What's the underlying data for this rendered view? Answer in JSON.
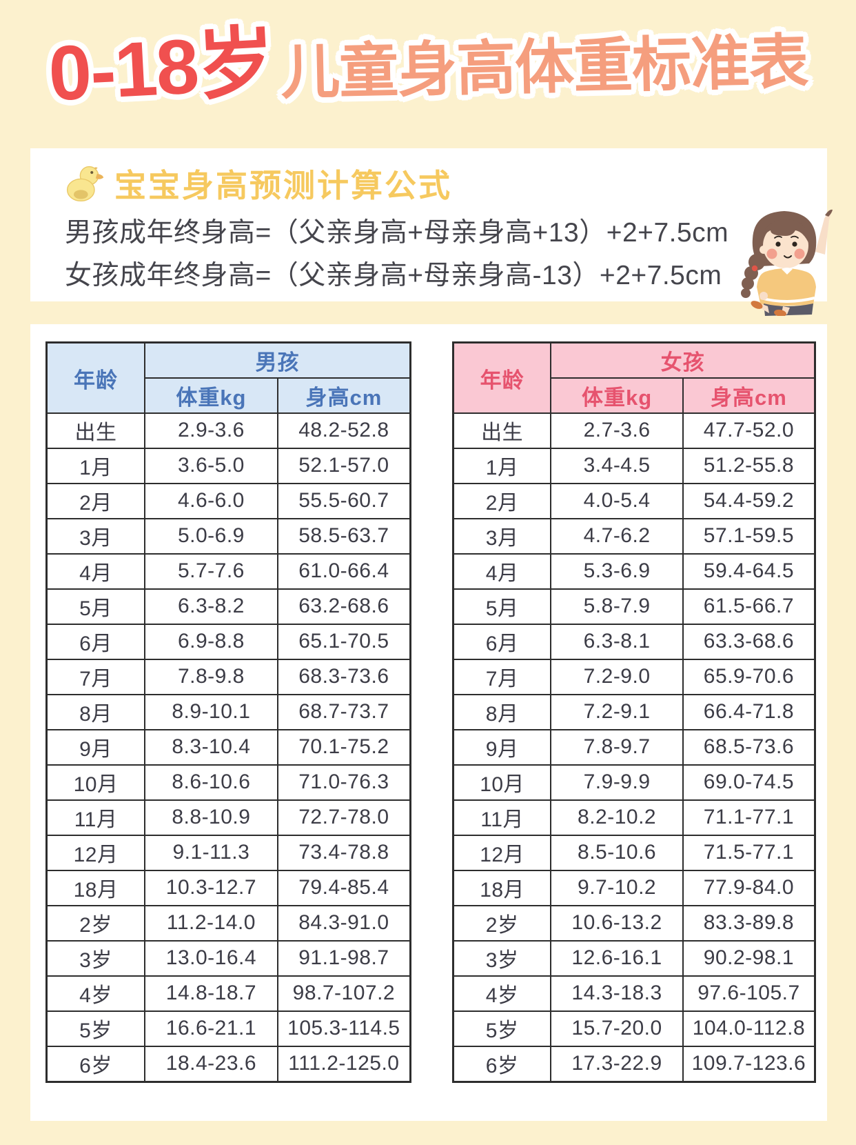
{
  "title": {
    "age_range": "0-18岁",
    "main": "儿童身高体重标准表"
  },
  "formula_card": {
    "heading": "宝宝身高预测计算公式",
    "lines": [
      "男孩成年终身高=（父亲身高+母亲身高+13）+2+7.5cm",
      "女孩成年终身高=（父亲身高+母亲身高-13）+2+7.5cm"
    ]
  },
  "tables": {
    "boys": {
      "age_header": "年龄",
      "group_header": "男孩",
      "weight_header": "体重kg",
      "height_header": "身高cm",
      "rows": [
        {
          "age": "出生",
          "weight": "2.9-3.6",
          "height": "48.2-52.8"
        },
        {
          "age": "1月",
          "weight": "3.6-5.0",
          "height": "52.1-57.0"
        },
        {
          "age": "2月",
          "weight": "4.6-6.0",
          "height": "55.5-60.7"
        },
        {
          "age": "3月",
          "weight": "5.0-6.9",
          "height": "58.5-63.7"
        },
        {
          "age": "4月",
          "weight": "5.7-7.6",
          "height": "61.0-66.4"
        },
        {
          "age": "5月",
          "weight": "6.3-8.2",
          "height": "63.2-68.6"
        },
        {
          "age": "6月",
          "weight": "6.9-8.8",
          "height": "65.1-70.5"
        },
        {
          "age": "7月",
          "weight": "7.8-9.8",
          "height": "68.3-73.6"
        },
        {
          "age": "8月",
          "weight": "8.9-10.1",
          "height": "68.7-73.7"
        },
        {
          "age": "9月",
          "weight": "8.3-10.4",
          "height": "70.1-75.2"
        },
        {
          "age": "10月",
          "weight": "8.6-10.6",
          "height": "71.0-76.3"
        },
        {
          "age": "11月",
          "weight": "8.8-10.9",
          "height": "72.7-78.0"
        },
        {
          "age": "12月",
          "weight": "9.1-11.3",
          "height": "73.4-78.8"
        },
        {
          "age": "18月",
          "weight": "10.3-12.7",
          "height": "79.4-85.4"
        },
        {
          "age": "2岁",
          "weight": "11.2-14.0",
          "height": "84.3-91.0"
        },
        {
          "age": "3岁",
          "weight": "13.0-16.4",
          "height": "91.1-98.7"
        },
        {
          "age": "4岁",
          "weight": "14.8-18.7",
          "height": "98.7-107.2"
        },
        {
          "age": "5岁",
          "weight": "16.6-21.1",
          "height": "105.3-114.5"
        },
        {
          "age": "6岁",
          "weight": "18.4-23.6",
          "height": "111.2-125.0"
        }
      ]
    },
    "girls": {
      "age_header": "年龄",
      "group_header": "女孩",
      "weight_header": "体重kg",
      "height_header": "身高cm",
      "rows": [
        {
          "age": "出生",
          "weight": "2.7-3.6",
          "height": "47.7-52.0"
        },
        {
          "age": "1月",
          "weight": "3.4-4.5",
          "height": "51.2-55.8"
        },
        {
          "age": "2月",
          "weight": "4.0-5.4",
          "height": "54.4-59.2"
        },
        {
          "age": "3月",
          "weight": "4.7-6.2",
          "height": "57.1-59.5"
        },
        {
          "age": "4月",
          "weight": "5.3-6.9",
          "height": "59.4-64.5"
        },
        {
          "age": "5月",
          "weight": "5.8-7.9",
          "height": "61.5-66.7"
        },
        {
          "age": "6月",
          "weight": "6.3-8.1",
          "height": "63.3-68.6"
        },
        {
          "age": "7月",
          "weight": "7.2-9.0",
          "height": "65.9-70.6"
        },
        {
          "age": "8月",
          "weight": "7.2-9.1",
          "height": "66.4-71.8"
        },
        {
          "age": "9月",
          "weight": "7.8-9.7",
          "height": "68.5-73.6"
        },
        {
          "age": "10月",
          "weight": "7.9-9.9",
          "height": "69.0-74.5"
        },
        {
          "age": "11月",
          "weight": "8.2-10.2",
          "height": "71.1-77.1"
        },
        {
          "age": "12月",
          "weight": "8.5-10.6",
          "height": "71.5-77.1"
        },
        {
          "age": "18月",
          "weight": "9.7-10.2",
          "height": "77.9-84.0"
        },
        {
          "age": "2岁",
          "weight": "10.6-13.2",
          "height": "83.3-89.8"
        },
        {
          "age": "3岁",
          "weight": "12.6-16.1",
          "height": "90.2-98.1"
        },
        {
          "age": "4岁",
          "weight": "14.3-18.3",
          "height": "97.6-105.7"
        },
        {
          "age": "5岁",
          "weight": "15.7-20.0",
          "height": "104.0-112.8"
        },
        {
          "age": "6岁",
          "weight": "17.3-22.9",
          "height": "109.7-123.6"
        }
      ]
    }
  },
  "colors": {
    "background": "#FCF1CE",
    "panel": "#FFFFFF",
    "title_red": "#F0504F",
    "title_salmon": "#F59E7E",
    "heading_gold": "#F6C95F",
    "boys_header_bg": "#D8E7F6",
    "boys_header_text": "#4A75B8",
    "girls_header_bg": "#FAC8D3",
    "girls_header_text": "#E6536E",
    "cell_text": "#3C3C46",
    "table_border": "#2D2D2D"
  }
}
